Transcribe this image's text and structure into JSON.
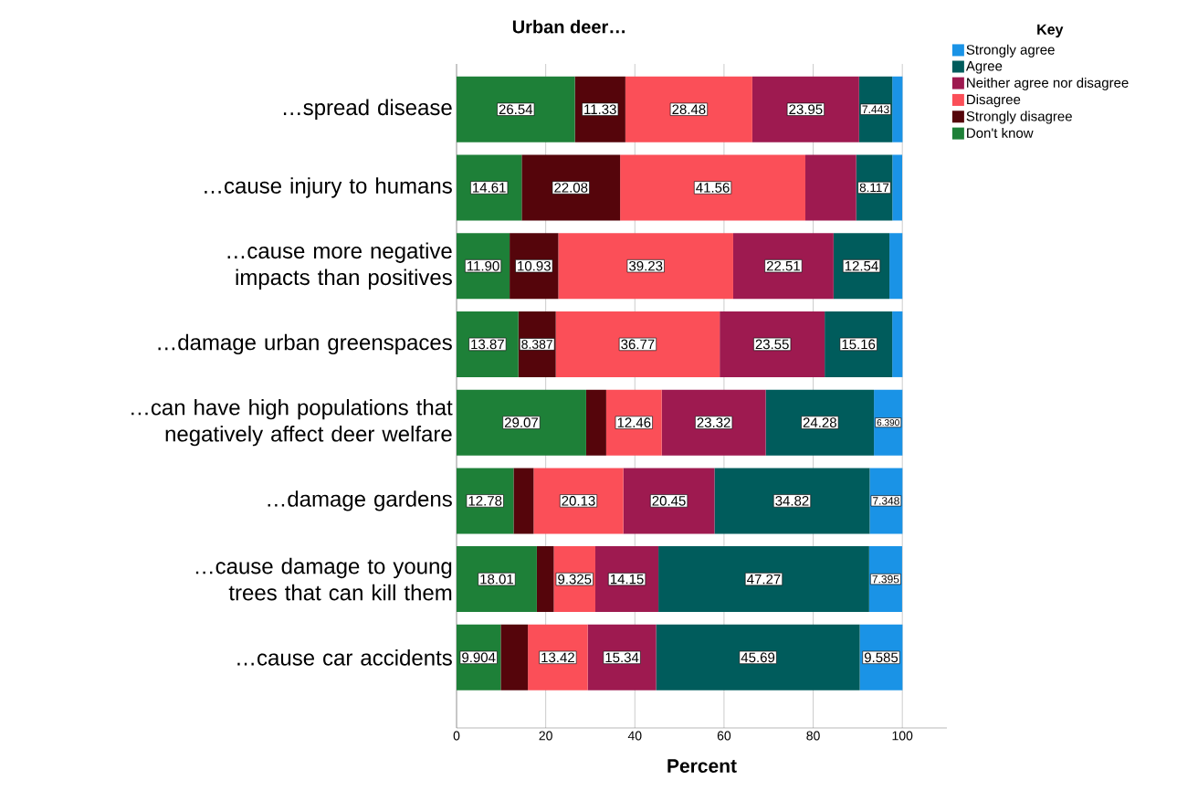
{
  "chart_data": {
    "type": "bar",
    "orientation": "horizontal",
    "stacked": true,
    "title": "Urban deer…",
    "xlabel": "Percent",
    "legend_title": "Key",
    "legend": "top right",
    "grid": "x",
    "categories": [
      "…spread disease",
      "…cause injury to humans",
      "…cause more negative impacts than positives",
      "…damage urban greenspaces",
      "…can have high populations that negatively affect deer welfare",
      "…damage gardens",
      "…cause damage to young trees that can kill them",
      "…cause car accidents"
    ],
    "xlim": [
      0,
      110
    ],
    "xticks": [
      0,
      20,
      40,
      60,
      80,
      100
    ],
    "series": [
      {
        "name": "Don't know",
        "color": "#1e8038",
        "values": [
          26.54,
          14.61,
          11.9,
          13.87,
          29.07,
          12.78,
          18.01,
          9.904
        ],
        "value_labels": [
          "26.54",
          "14.61",
          "11.90",
          "13.87",
          "29.07",
          "12.78",
          "18.01",
          "9.904"
        ]
      },
      {
        "name": "Strongly disagree",
        "color": "#55050b",
        "values": [
          11.33,
          22.08,
          10.93,
          8.387,
          4.5,
          4.5,
          3.8,
          6.1
        ],
        "value_labels": [
          "11.33",
          "22.08",
          "10.93",
          "8.387",
          null,
          null,
          null,
          null
        ]
      },
      {
        "name": "Disagree",
        "color": "#fb4f58",
        "values": [
          28.48,
          41.56,
          39.23,
          36.77,
          12.46,
          20.13,
          9.325,
          13.42
        ],
        "value_labels": [
          "28.48",
          "41.56",
          "39.23",
          "36.77",
          "12.46",
          "20.13",
          "9.325",
          "13.42"
        ]
      },
      {
        "name": "Neither agree nor disagree",
        "color": "#9e1a50",
        "values": [
          23.95,
          11.4,
          22.51,
          23.55,
          23.32,
          20.45,
          14.15,
          15.34
        ],
        "value_labels": [
          "23.95",
          null,
          "22.51",
          "23.55",
          "23.32",
          "20.45",
          "14.15",
          "15.34"
        ]
      },
      {
        "name": "Agree",
        "color": "#005c5c",
        "values": [
          7.443,
          8.117,
          12.54,
          15.16,
          24.28,
          34.82,
          47.27,
          45.69
        ],
        "value_labels": [
          "7.443",
          "8.117",
          "12.54",
          "15.16",
          "24.28",
          "34.82",
          "47.27",
          "45.69"
        ]
      },
      {
        "name": "Strongly agree",
        "color": "#1a93e6",
        "values": [
          2.3,
          2.2,
          2.9,
          2.3,
          6.39,
          7.348,
          7.395,
          9.585
        ],
        "value_labels": [
          null,
          null,
          null,
          null,
          "6.390",
          "7.348",
          "7.395",
          "9.585"
        ]
      }
    ]
  }
}
